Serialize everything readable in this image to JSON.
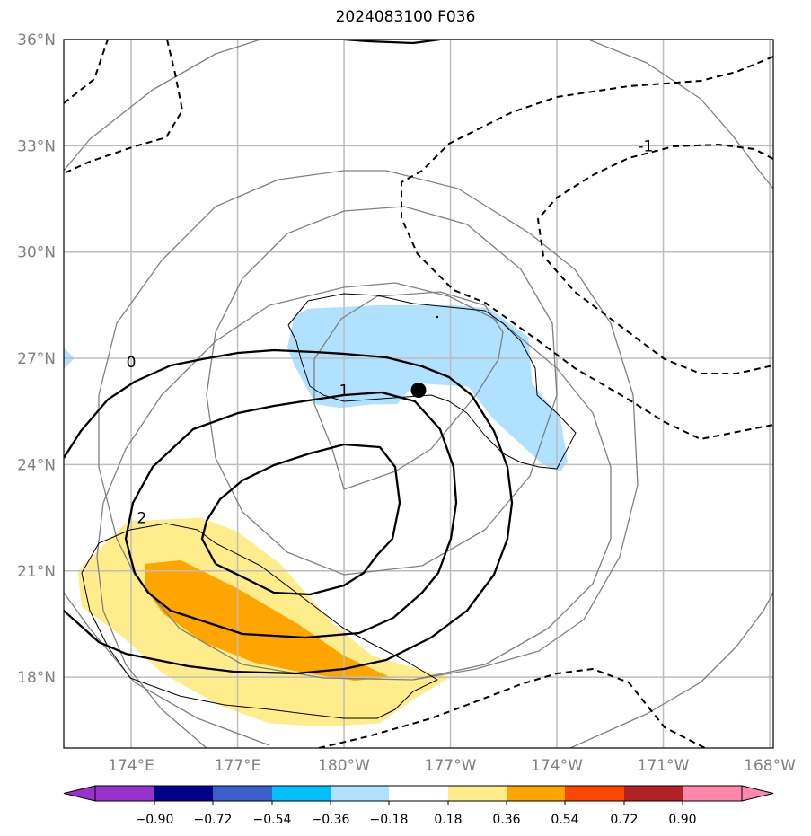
{
  "chart_data": {
    "type": "contour-map",
    "title": "2024083100 F036",
    "xlabel": "",
    "ylabel": "",
    "lon_range_deg_east": [
      172.1,
      192.1
    ],
    "lat_range": [
      16.0,
      36.0
    ],
    "x_ticks": [
      {
        "label": "174°E",
        "lon": 174
      },
      {
        "label": "177°E",
        "lon": 177
      },
      {
        "label": "180°W",
        "lon": 180
      },
      {
        "label": "177°W",
        "lon": 183
      },
      {
        "label": "174°W",
        "lon": 186
      },
      {
        "label": "171°W",
        "lon": 189
      },
      {
        "label": "168°W",
        "lon": 192
      }
    ],
    "y_ticks": [
      {
        "label": "36°N",
        "lat": 36
      },
      {
        "label": "33°N",
        "lat": 33
      },
      {
        "label": "30°N",
        "lat": 30
      },
      {
        "label": "27°N",
        "lat": 27
      },
      {
        "label": "24°N",
        "lat": 24
      },
      {
        "label": "21°N",
        "lat": 21
      },
      {
        "label": "18°N",
        "lat": 18
      }
    ],
    "grid": true,
    "storm_center": {
      "lon": 182.1,
      "lat": 26.1
    },
    "colorbar": {
      "orientation": "horizontal",
      "placement": "bottom",
      "extend": "both",
      "ticks": [
        "−0.90",
        "−0.72",
        "−0.54",
        "−0.36",
        "−0.18",
        "0.18",
        "0.36",
        "0.54",
        "0.72",
        "0.90"
      ],
      "colors": [
        "#9932CC",
        "#00008B",
        "#3A5FCD",
        "#00BFFF",
        "#B0E2FF",
        "#FFFFFF",
        "#FFEC8B",
        "#FFA500",
        "#FF4500",
        "#B22222",
        "#FF88AA"
      ]
    },
    "contour_labels": [
      {
        "text": "0",
        "lon": 174.0,
        "lat": 26.9
      },
      {
        "text": "1",
        "lon": 180.0,
        "lat": 26.1
      },
      {
        "text": "2",
        "lon": 174.3,
        "lat": 22.5
      },
      {
        "text": "-1",
        "lon": 188.5,
        "lat": 33.0
      }
    ],
    "shaded_regions": [
      {
        "level": "-0.36 to -0.18",
        "color": "#B0E2FF",
        "polygon": [
          [
            178.6,
            28.2
          ],
          [
            179.0,
            28.4
          ],
          [
            181.0,
            28.5
          ],
          [
            183.1,
            28.5
          ],
          [
            184.1,
            28.4
          ],
          [
            185.2,
            27.6
          ],
          [
            185.3,
            26.3
          ],
          [
            186.1,
            25.3
          ],
          [
            186.3,
            24.1
          ],
          [
            186.1,
            23.8
          ],
          [
            185.6,
            24.0
          ],
          [
            184.2,
            25.3
          ],
          [
            183.5,
            26.2
          ],
          [
            182.0,
            26.3
          ],
          [
            181.5,
            25.7
          ],
          [
            180.8,
            25.7
          ],
          [
            179.9,
            25.6
          ],
          [
            179.2,
            25.7
          ],
          [
            178.6,
            26.8
          ],
          [
            178.4,
            27.3
          ]
        ]
      },
      {
        "level": "0.18 to 0.36",
        "color": "#FFEC8B",
        "polygon": [
          [
            172.5,
            21.0
          ],
          [
            173.9,
            22.4
          ],
          [
            176.0,
            22.5
          ],
          [
            177.0,
            22.1
          ],
          [
            178.2,
            21.2
          ],
          [
            179.7,
            19.5
          ],
          [
            180.8,
            18.6
          ],
          [
            182.2,
            18.2
          ],
          [
            183.0,
            18.0
          ],
          [
            182.0,
            17.4
          ],
          [
            181.0,
            16.7
          ],
          [
            179.4,
            16.6
          ],
          [
            177.9,
            16.7
          ],
          [
            176.5,
            17.2
          ],
          [
            174.9,
            18.1
          ],
          [
            173.8,
            19.1
          ],
          [
            172.6,
            20.0
          ]
        ]
      },
      {
        "level": "0.36 to 0.54",
        "color": "#FFA500",
        "polygon": [
          [
            174.4,
            21.2
          ],
          [
            175.4,
            21.3
          ],
          [
            177.0,
            20.5
          ],
          [
            178.7,
            19.5
          ],
          [
            180.0,
            18.6
          ],
          [
            181.3,
            18.0
          ],
          [
            180.3,
            17.9
          ],
          [
            179.0,
            18.1
          ],
          [
            177.5,
            18.4
          ],
          [
            176.0,
            19.0
          ],
          [
            174.9,
            19.8
          ],
          [
            174.4,
            20.5
          ]
        ]
      }
    ],
    "contour_sets": [
      {
        "name": "solid positive contours (0, 1, 2)",
        "style": "solid-thick",
        "color": "#000000"
      },
      {
        "name": "dashed negative contours (-1)",
        "style": "dashed",
        "color": "#000000"
      },
      {
        "name": "gray concentric contours",
        "style": "solid-thin",
        "color": "#808080"
      },
      {
        "name": "thin outline contours",
        "style": "solid-hairline",
        "color": "#000000"
      }
    ]
  }
}
